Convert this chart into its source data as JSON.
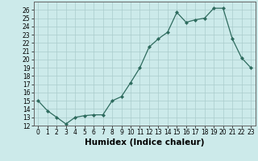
{
  "x": [
    0,
    1,
    2,
    3,
    4,
    5,
    6,
    7,
    8,
    9,
    10,
    11,
    12,
    13,
    14,
    15,
    16,
    17,
    18,
    19,
    20,
    21,
    22,
    23
  ],
  "y": [
    15.0,
    13.8,
    13.0,
    12.2,
    13.0,
    13.2,
    13.3,
    13.3,
    15.0,
    15.5,
    17.2,
    19.0,
    21.5,
    22.5,
    23.3,
    25.7,
    24.5,
    24.8,
    25.0,
    26.2,
    26.2,
    22.5,
    20.2,
    19.0
  ],
  "xlabel": "Humidex (Indice chaleur)",
  "ylim": [
    12,
    27
  ],
  "xlim": [
    -0.5,
    23.5
  ],
  "yticks": [
    12,
    13,
    14,
    15,
    16,
    17,
    18,
    19,
    20,
    21,
    22,
    23,
    24,
    25,
    26
  ],
  "xticks": [
    0,
    1,
    2,
    3,
    4,
    5,
    6,
    7,
    8,
    9,
    10,
    11,
    12,
    13,
    14,
    15,
    16,
    17,
    18,
    19,
    20,
    21,
    22,
    23
  ],
  "line_color": "#2e6b5e",
  "marker_color": "#2e6b5e",
  "bg_color": "#cceaea",
  "grid_color": "#aacccc",
  "tick_label_fontsize": 5.5,
  "xlabel_fontsize": 7.5
}
